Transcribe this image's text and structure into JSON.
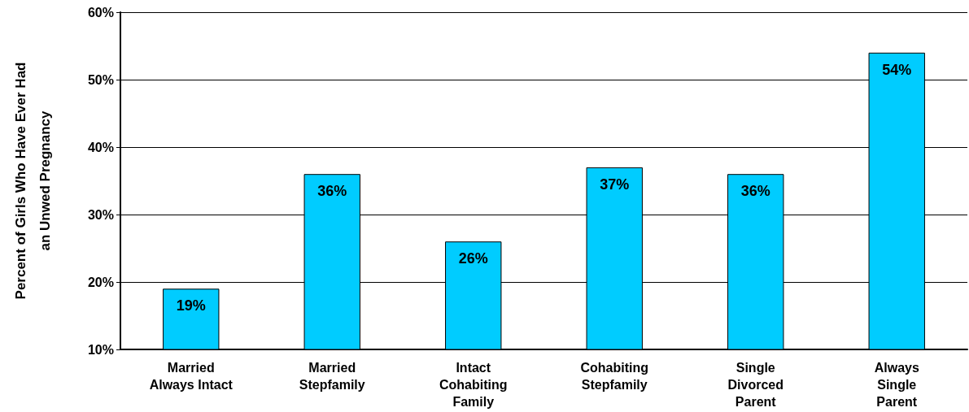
{
  "chart_data": {
    "type": "bar",
    "ylabel": "Percent of Girls Who Have Ever Had\nan Unwed Pregnancy",
    "categories": [
      "Married\nAlways Intact",
      "Married\nStepfamily",
      "Intact\nCohabiting\nFamily",
      "Cohabiting\nStepfamily",
      "Single\nDivorced\nParent",
      "Always\nSingle\nParent"
    ],
    "values": [
      19,
      36,
      26,
      37,
      36,
      54
    ],
    "value_labels": [
      "19%",
      "36%",
      "26%",
      "37%",
      "36%",
      "54%"
    ],
    "color": "#00ccff",
    "ylim": [
      10,
      60
    ],
    "yticks": [
      {
        "value": 10,
        "label": "10%"
      },
      {
        "value": 20,
        "label": "20%"
      },
      {
        "value": 30,
        "label": "30%"
      },
      {
        "value": 40,
        "label": "40%"
      },
      {
        "value": 50,
        "label": "50%"
      },
      {
        "value": 60,
        "label": "60%"
      }
    ],
    "grid": "y"
  }
}
